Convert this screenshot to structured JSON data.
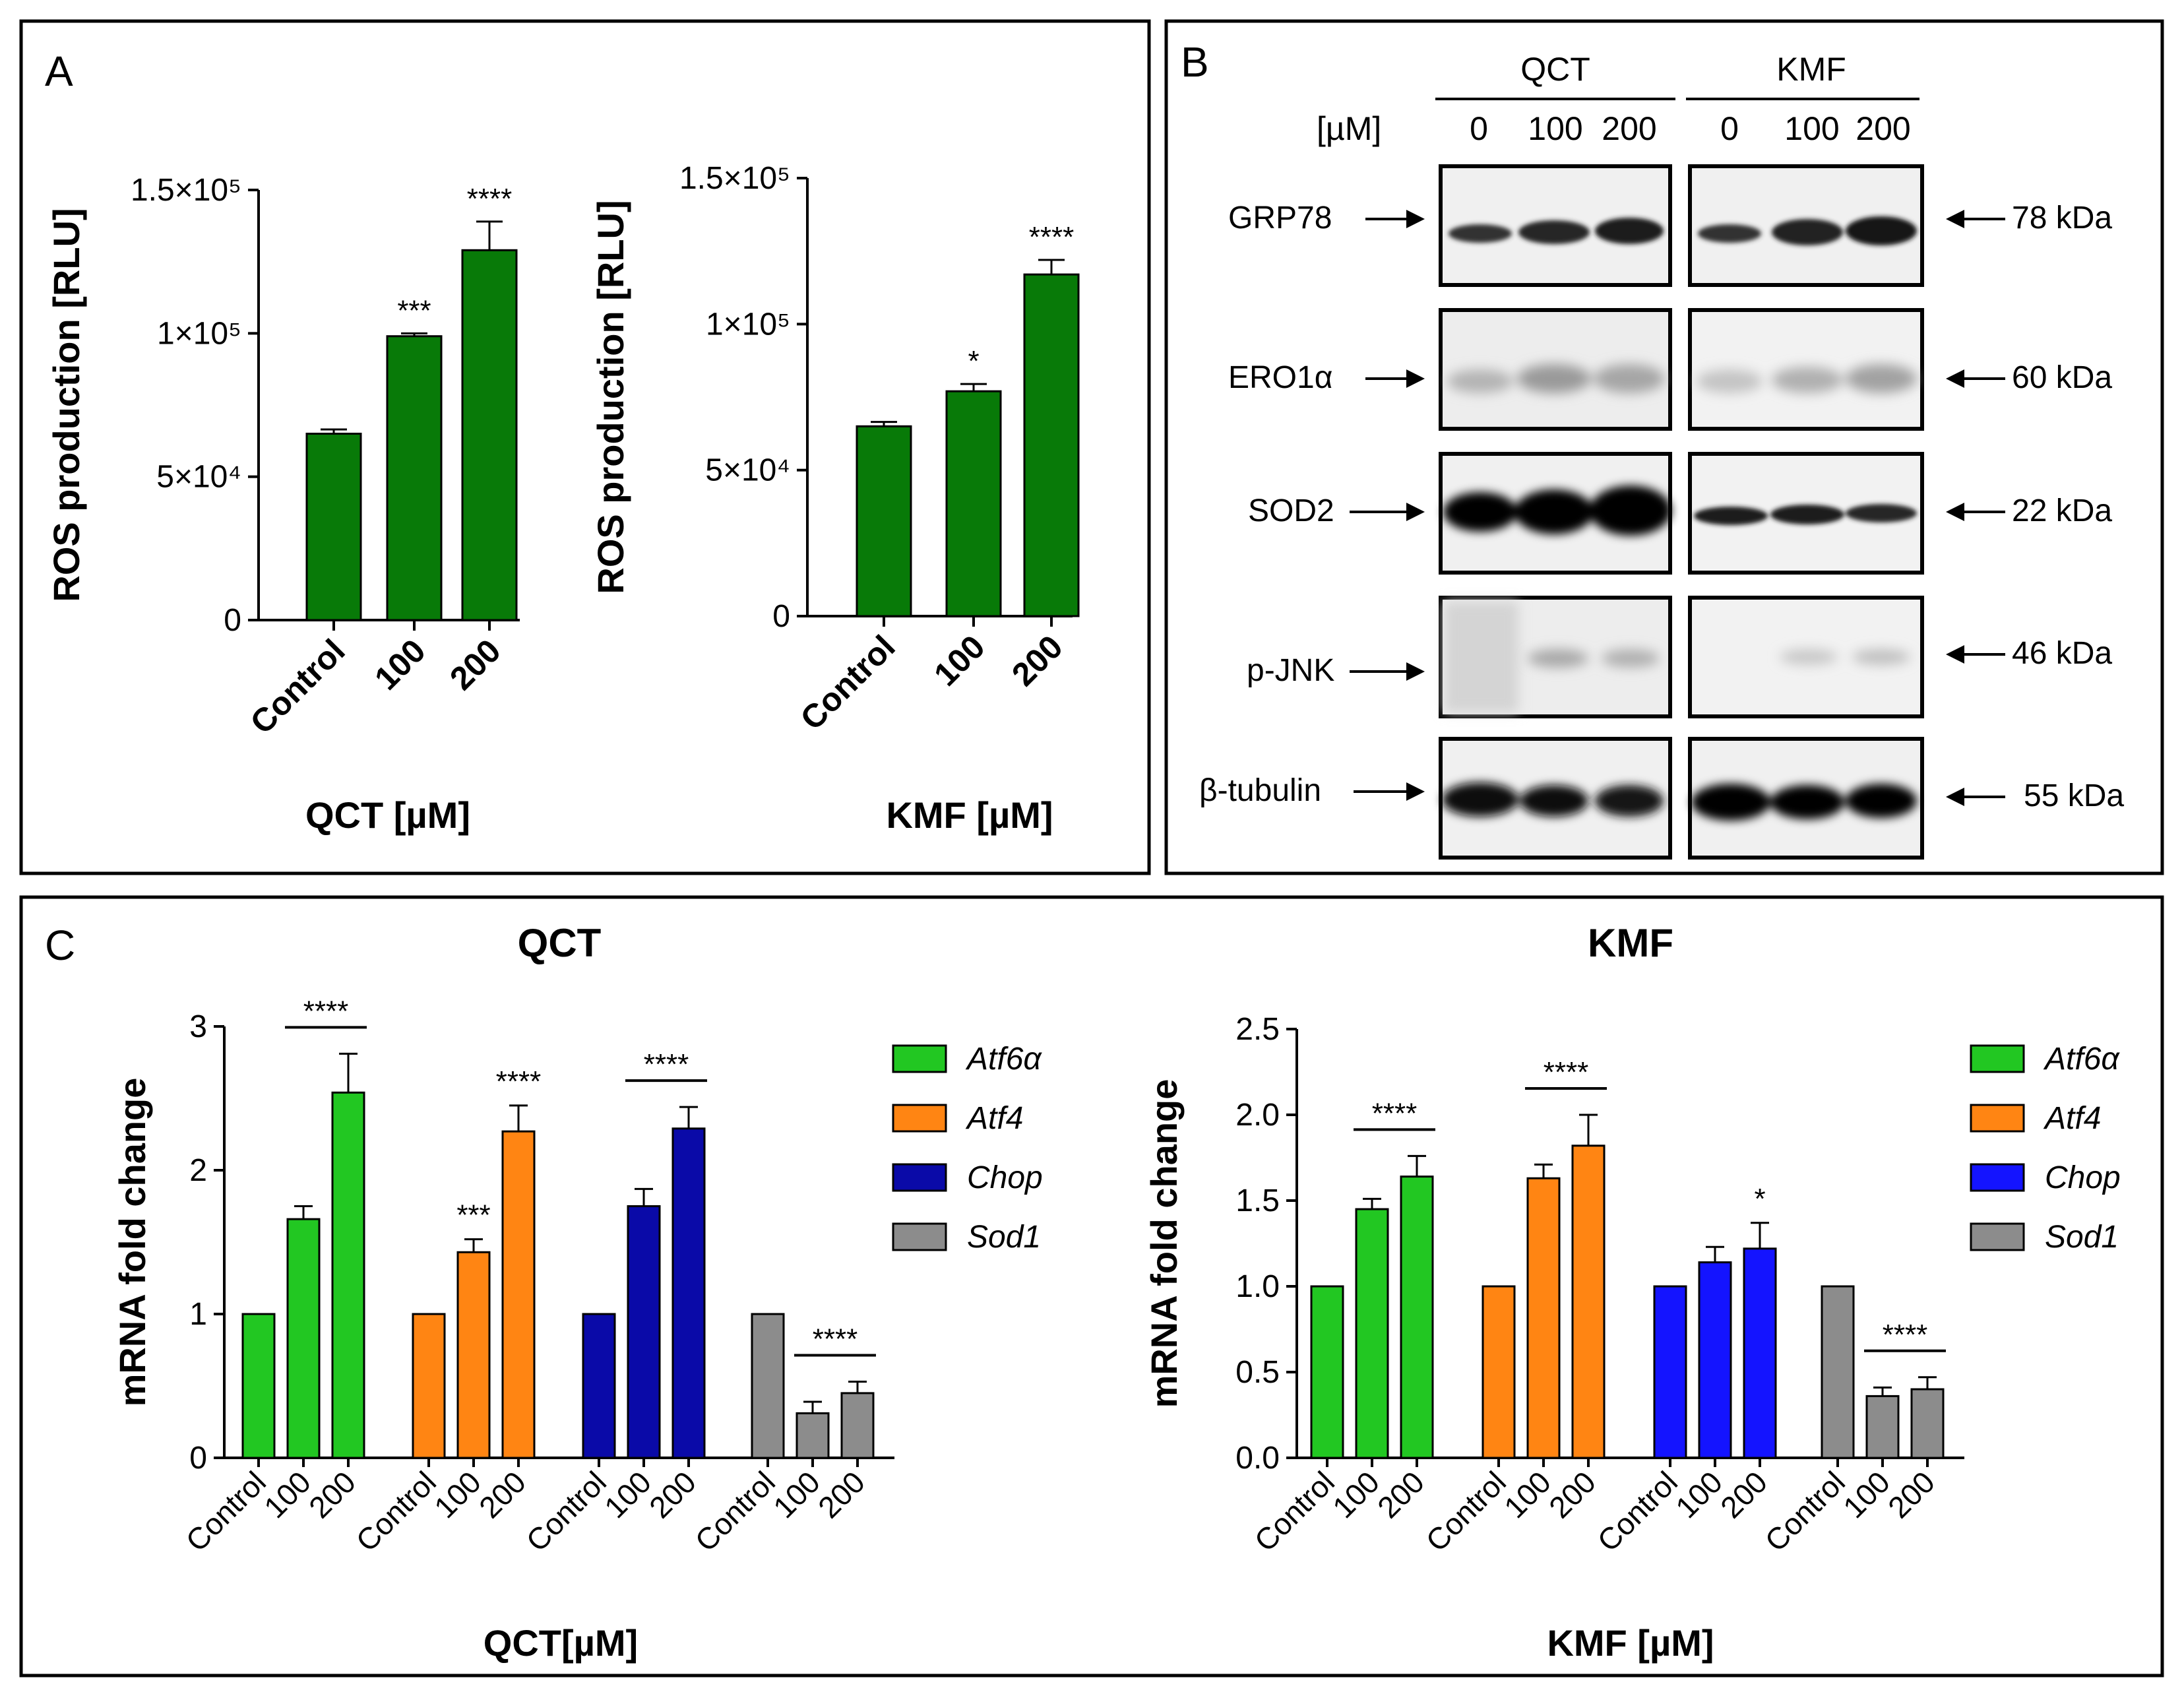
{
  "panels": {
    "a": "A",
    "b": "B",
    "c": "C"
  },
  "colors": {
    "green_dark": "#087a08",
    "green_light": "#22c722",
    "orange": "#ff8513",
    "navy": "#0a0aa8",
    "blue": "#1414ff",
    "gray": "#8c8c8c"
  },
  "panel_b": {
    "groups": [
      "QCT",
      "KMF"
    ],
    "unit_label": "[µM]",
    "doses": [
      "0",
      "100",
      "200"
    ],
    "rows": [
      {
        "protein": "GRP78",
        "size": "78 kDa"
      },
      {
        "protein": "ERO1α",
        "size": "60 kDa"
      },
      {
        "protein": "SOD2",
        "size": "22 kDa"
      },
      {
        "protein": "p-JNK",
        "size": "46 kDa"
      },
      {
        "protein": "β-tubulin",
        "size": "55 kDa"
      }
    ]
  },
  "chart_data": [
    {
      "id": "A-QCT",
      "type": "bar",
      "title": "",
      "xlabel": "QCT [µM]",
      "ylabel": "ROS production [RLU]",
      "ylim": [
        0,
        150000
      ],
      "yticks": [
        "0",
        "5×10⁴",
        "1×10⁵",
        "1.5×10⁵"
      ],
      "categories": [
        "Control",
        "100",
        "200"
      ],
      "values": [
        65000,
        99000,
        129000
      ],
      "errors": [
        1500,
        1000,
        10000
      ],
      "significance": [
        "",
        "***",
        "****"
      ]
    },
    {
      "id": "A-KMF",
      "type": "bar",
      "title": "",
      "xlabel": "KMF [µM]",
      "ylabel": "ROS production [RLU]",
      "ylim": [
        0,
        150000
      ],
      "yticks": [
        "0",
        "5×10⁴",
        "1×10⁵",
        "1.5×10⁵"
      ],
      "categories": [
        "Control",
        "100",
        "200"
      ],
      "values": [
        65000,
        77000,
        117000
      ],
      "errors": [
        1500,
        2500,
        5000
      ],
      "significance": [
        "",
        "*",
        "****"
      ]
    },
    {
      "id": "C-QCT",
      "type": "bar",
      "title": "QCT",
      "xlabel": "QCT[µM]",
      "ylabel": "mRNA fold change",
      "ylim": [
        0,
        3
      ],
      "yticks": [
        "0",
        "1",
        "2",
        "3"
      ],
      "categories": [
        "Control",
        "100",
        "200"
      ],
      "series": [
        {
          "name": "Atf6α",
          "values": [
            1.0,
            1.66,
            2.54
          ],
          "errors": [
            0,
            0.09,
            0.27
          ],
          "significance": [
            "",
            "",
            ""
          ],
          "bracket": "****"
        },
        {
          "name": "Atf4",
          "values": [
            1.0,
            1.43,
            2.27
          ],
          "errors": [
            0,
            0.09,
            0.18
          ],
          "significance": [
            "",
            "***",
            "****"
          ],
          "bracket": ""
        },
        {
          "name": "Chop",
          "values": [
            1.0,
            1.75,
            2.29
          ],
          "errors": [
            0,
            0.12,
            0.15
          ],
          "significance": [
            "",
            "",
            ""
          ],
          "bracket": "****"
        },
        {
          "name": "Sod1",
          "values": [
            1.0,
            0.31,
            0.45
          ],
          "errors": [
            0,
            0.08,
            0.08
          ],
          "significance": [
            "",
            "",
            ""
          ],
          "bracket": "****"
        }
      ]
    },
    {
      "id": "C-KMF",
      "type": "bar",
      "title": "KMF",
      "xlabel": "KMF [µM]",
      "ylabel": "mRNA fold change",
      "ylim": [
        0,
        2.5
      ],
      "yticks": [
        "0.0",
        "0.5",
        "1.0",
        "1.5",
        "2.0",
        "2.5"
      ],
      "categories": [
        "Control",
        "100",
        "200"
      ],
      "series": [
        {
          "name": "Atf6α",
          "values": [
            1.0,
            1.45,
            1.64
          ],
          "errors": [
            0,
            0.06,
            0.12
          ],
          "significance": [
            "",
            "",
            ""
          ],
          "bracket": "****"
        },
        {
          "name": "Atf4",
          "values": [
            1.0,
            1.63,
            1.82
          ],
          "errors": [
            0,
            0.08,
            0.18
          ],
          "significance": [
            "",
            "",
            ""
          ],
          "bracket": "****"
        },
        {
          "name": "Chop",
          "values": [
            1.0,
            1.14,
            1.22
          ],
          "errors": [
            0,
            0.09,
            0.15
          ],
          "significance": [
            "",
            "",
            "*"
          ],
          "bracket": ""
        },
        {
          "name": "Sod1",
          "values": [
            1.0,
            0.36,
            0.4
          ],
          "errors": [
            0,
            0.05,
            0.07
          ],
          "significance": [
            "",
            "",
            ""
          ],
          "bracket": "****"
        }
      ]
    }
  ]
}
